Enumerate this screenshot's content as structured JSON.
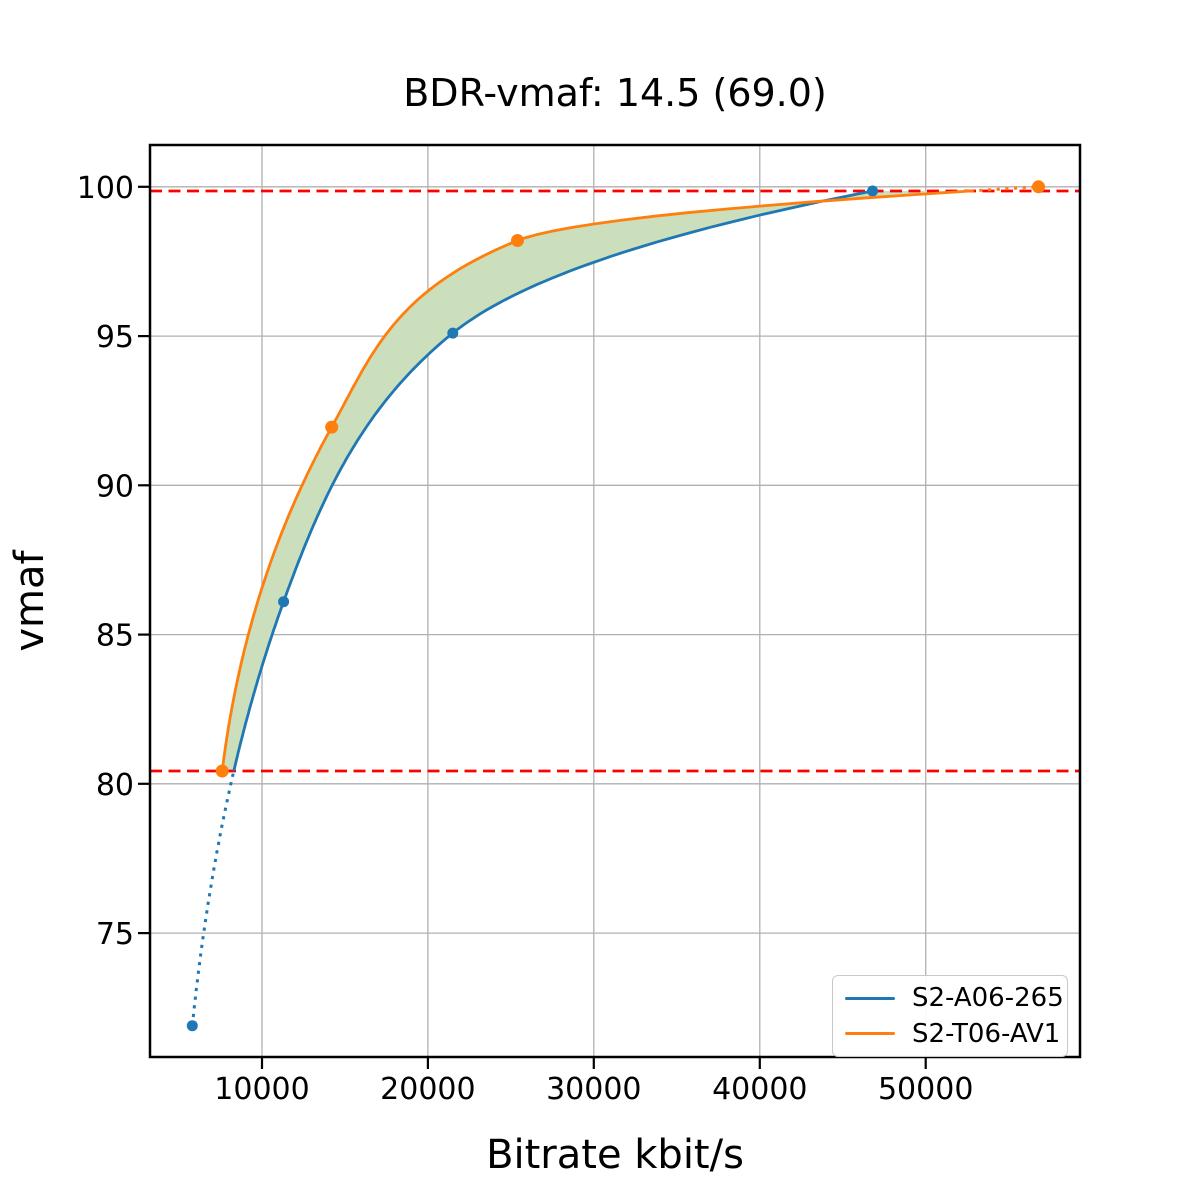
{
  "chart_data": {
    "type": "line",
    "title": "BDR-vmaf: 14.5 (69.0)",
    "xlabel": "Bitrate kbit/s",
    "ylabel": "vmaf",
    "xlim": [
      3250,
      59300
    ],
    "ylim": [
      70.85,
      101.4
    ],
    "xticks": [
      10000,
      20000,
      30000,
      40000,
      50000
    ],
    "xtick_labels": [
      "10000",
      "20000",
      "30000",
      "40000",
      "50000"
    ],
    "yticks": [
      75,
      80,
      85,
      90,
      95,
      100
    ],
    "ytick_labels": [
      "75",
      "80",
      "85",
      "90",
      "95",
      "100"
    ],
    "grid": true,
    "grid_color": "#b0b0b0",
    "spine_color": "#000000",
    "background_color": "#ffffff",
    "legend_position": "lower right",
    "series": [
      {
        "name": "S2-A06-265",
        "color": "#1f77b4",
        "marker": "circle",
        "x": [
          5800,
          11300,
          21500,
          46800
        ],
        "y": [
          71.9,
          86.1,
          95.1,
          99.86
        ]
      },
      {
        "name": "S2-T06-AV1",
        "color": "#ff7f0e",
        "marker": "circle",
        "x": [
          7600,
          14200,
          25400,
          56800
        ],
        "y": [
          80.43,
          91.95,
          98.2,
          100.0
        ]
      }
    ],
    "hlines": {
      "values": [
        80.43,
        99.86
      ],
      "color": "#ff0000",
      "style": "dashed",
      "note": "integration bounds; curves drawn dotted outside these vmaf bounds"
    },
    "fill_between": {
      "color": "#cbdfbc",
      "between": [
        "S2-A06-265",
        "S2-T06-AV1"
      ],
      "vmaf_range": [
        80.43,
        99.86
      ]
    },
    "bdr_value": "14.5",
    "bdr_reference_value": "69.0"
  },
  "legend": {
    "items": [
      {
        "label": "S2-A06-265"
      },
      {
        "label": "S2-T06-AV1"
      }
    ]
  }
}
